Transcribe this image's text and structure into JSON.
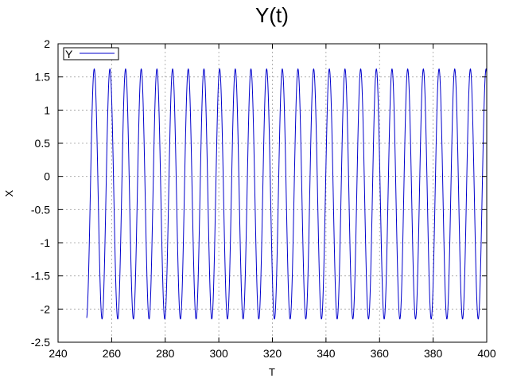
{
  "chart_data": {
    "type": "line",
    "title": "Y(t)",
    "xlabel": "T",
    "ylabel": "X",
    "xlim": [
      240,
      400
    ],
    "ylim": [
      -2.5,
      2
    ],
    "x_ticks": [
      240,
      260,
      280,
      300,
      320,
      340,
      360,
      380,
      400
    ],
    "y_ticks": [
      -2.5,
      -2,
      -1.5,
      -1,
      -0.5,
      0,
      0.5,
      1,
      1.5,
      2
    ],
    "grid": true,
    "legend_position": "top-left",
    "series": [
      {
        "name": "Y",
        "color": "#0000cc",
        "x_start": 250.7,
        "x_end": 400,
        "period": 5.85,
        "first_peak_t": 253.5,
        "max": 1.62,
        "min": -2.15,
        "start_value": -1.98
      }
    ]
  }
}
